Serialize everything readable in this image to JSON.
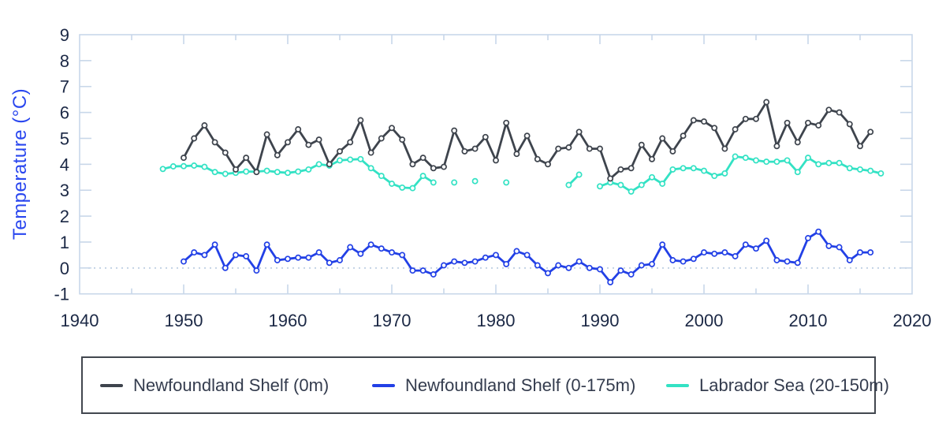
{
  "chart_data": {
    "type": "line",
    "title": "",
    "ylabel": "Temperature (°C)",
    "xlabel": "",
    "xlim": [
      1940,
      2020
    ],
    "ylim": [
      -1,
      9
    ],
    "x_tick_labels": [
      "1940",
      "1950",
      "1960",
      "1970",
      "1980",
      "1990",
      "2000",
      "2010",
      "2020"
    ],
    "x_minor_tick_step": 5,
    "y_tick_labels": [
      "-1",
      "0",
      "1",
      "2",
      "3",
      "4",
      "5",
      "6",
      "7",
      "8",
      "9"
    ],
    "zero_line": true,
    "legend_position": "bottom",
    "grid": false,
    "series": [
      {
        "name": "Newfoundland Shelf (0m)",
        "color": "#3e444d",
        "start_year": 1950,
        "values": [
          4.25,
          5.0,
          5.5,
          4.85,
          4.45,
          3.8,
          4.25,
          3.7,
          5.15,
          4.35,
          4.85,
          5.35,
          4.75,
          4.95,
          4.0,
          4.5,
          4.85,
          5.7,
          4.45,
          5.0,
          5.4,
          4.95,
          4.0,
          4.25,
          3.85,
          3.9,
          5.3,
          4.5,
          4.6,
          5.05,
          4.15,
          5.6,
          4.4,
          5.1,
          4.2,
          4.0,
          4.6,
          4.65,
          5.25,
          4.6,
          4.6,
          3.45,
          3.8,
          3.85,
          4.75,
          4.2,
          5.0,
          4.5,
          5.1,
          5.7,
          5.65,
          5.4,
          4.6,
          5.35,
          5.75,
          5.75,
          6.4,
          4.7,
          5.6,
          4.85,
          5.6,
          5.5,
          6.1,
          6.0,
          5.55,
          4.7,
          5.25
        ]
      },
      {
        "name": "Newfoundland Shelf (0-175m)",
        "color": "#2240e6",
        "start_year": 1950,
        "values": [
          0.25,
          0.6,
          0.5,
          0.9,
          0.0,
          0.5,
          0.45,
          -0.1,
          0.9,
          0.3,
          0.35,
          0.4,
          0.4,
          0.6,
          0.2,
          0.3,
          0.8,
          0.55,
          0.9,
          0.75,
          0.6,
          0.5,
          -0.1,
          -0.1,
          -0.25,
          0.1,
          0.25,
          0.2,
          0.25,
          0.4,
          0.5,
          0.15,
          0.65,
          0.5,
          0.1,
          -0.2,
          0.1,
          0.0,
          0.25,
          0.0,
          -0.05,
          -0.55,
          -0.1,
          -0.25,
          0.1,
          0.15,
          0.9,
          0.3,
          0.25,
          0.35,
          0.6,
          0.55,
          0.6,
          0.45,
          0.9,
          0.75,
          1.05,
          0.3,
          0.25,
          0.2,
          1.15,
          1.4,
          0.85,
          0.8,
          0.3,
          0.6,
          0.6
        ]
      },
      {
        "name": "Labrador Sea (20-150m)",
        "color": "#33e2c4",
        "start_year": 1948,
        "values": [
          3.82,
          3.92,
          3.93,
          3.95,
          3.9,
          3.7,
          3.63,
          3.67,
          3.72,
          3.72,
          3.75,
          3.7,
          3.67,
          3.72,
          3.8,
          4.0,
          3.95,
          4.15,
          4.18,
          4.2,
          3.85,
          3.55,
          3.25,
          3.1,
          3.08,
          3.55,
          3.3,
          null,
          3.3,
          null,
          3.35,
          null,
          null,
          3.3,
          null,
          null,
          null,
          null,
          null,
          3.2,
          3.6,
          null,
          3.15,
          3.3,
          3.2,
          2.95,
          3.2,
          3.5,
          3.25,
          3.8,
          3.85,
          3.85,
          3.75,
          3.55,
          3.65,
          4.3,
          4.25,
          4.15,
          4.1,
          4.1,
          4.15,
          3.7,
          4.25,
          4.0,
          4.05,
          4.05,
          3.85,
          3.8,
          3.75,
          3.65
        ]
      }
    ]
  },
  "style": {
    "axis_color": "#c8d7e9",
    "zero_line_color": "#c3d2e5",
    "tick_label_color": "#1b2845",
    "ylabel_color": "#2946ef",
    "marker_fill": "#ffffff",
    "legend_border_color": "#42474f",
    "legend_text_color": "#343c4e"
  }
}
